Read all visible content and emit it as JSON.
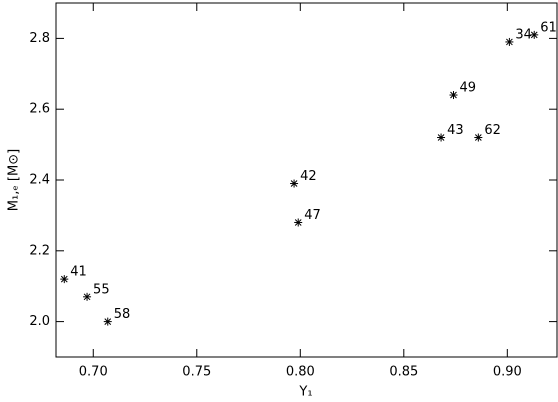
{
  "chart_data": {
    "type": "scatter",
    "x_label": "Y₁",
    "y_label": "M₁,ₑ [M⊙]",
    "x": [
      0.686,
      0.697,
      0.707,
      0.797,
      0.799,
      0.868,
      0.874,
      0.886,
      0.901,
      0.913
    ],
    "series": [
      {
        "color": "#000000",
        "values": [
          2.12,
          2.07,
          2.0,
          2.39,
          2.28,
          2.52,
          2.64,
          2.52,
          2.79,
          2.81
        ],
        "point_labels": [
          "41",
          "55",
          "58",
          "42",
          "47",
          "43",
          "49",
          "62",
          "34",
          "61"
        ]
      }
    ],
    "xlim": [
      0.682,
      0.924
    ],
    "ylim": [
      1.9,
      2.9
    ],
    "xticks": [
      {
        "value": 0.7,
        "label": "0.70"
      },
      {
        "value": 0.75,
        "label": "0.75"
      },
      {
        "value": 0.8,
        "label": "0.80"
      },
      {
        "value": 0.85,
        "label": "0.85"
      },
      {
        "value": 0.9,
        "label": "0.90"
      }
    ],
    "yticks": [
      {
        "value": 2.0,
        "label": "2.0"
      },
      {
        "value": 2.2,
        "label": "2.2"
      },
      {
        "value": 2.4,
        "label": "2.4"
      },
      {
        "value": 2.6,
        "label": "2.6"
      },
      {
        "value": 2.8,
        "label": "2.8"
      }
    ]
  }
}
